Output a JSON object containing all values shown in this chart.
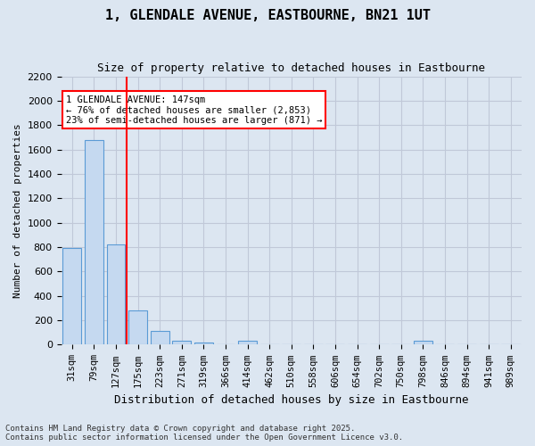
{
  "title_line1": "1, GLENDALE AVENUE, EASTBOURNE, BN21 1UT",
  "title_line2": "Size of property relative to detached houses in Eastbourne",
  "xlabel": "Distribution of detached houses by size in Eastbourne",
  "ylabel": "Number of detached properties",
  "categories": [
    "31sqm",
    "79sqm",
    "127sqm",
    "175sqm",
    "223sqm",
    "271sqm",
    "319sqm",
    "366sqm",
    "414sqm",
    "462sqm",
    "510sqm",
    "558sqm",
    "606sqm",
    "654sqm",
    "702sqm",
    "750sqm",
    "798sqm",
    "846sqm",
    "894sqm",
    "941sqm",
    "989sqm"
  ],
  "values": [
    790,
    1680,
    820,
    280,
    115,
    35,
    20,
    0,
    30,
    0,
    0,
    0,
    0,
    0,
    0,
    0,
    30,
    0,
    0,
    0,
    0
  ],
  "bar_color": "#c5d9f0",
  "bar_edgecolor": "#5b9bd5",
  "grid_color": "#c0c8d8",
  "background_color": "#dce6f1",
  "annotation_text": "1 GLENDALE AVENUE: 147sqm\n← 76% of detached houses are smaller (2,853)\n23% of semi-detached houses are larger (871) →",
  "redline_x": 2.5,
  "ylim": [
    0,
    2200
  ],
  "yticks": [
    0,
    200,
    400,
    600,
    800,
    1000,
    1200,
    1400,
    1600,
    1800,
    2000,
    2200
  ],
  "footer_line1": "Contains HM Land Registry data © Crown copyright and database right 2025.",
  "footer_line2": "Contains public sector information licensed under the Open Government Licence v3.0."
}
